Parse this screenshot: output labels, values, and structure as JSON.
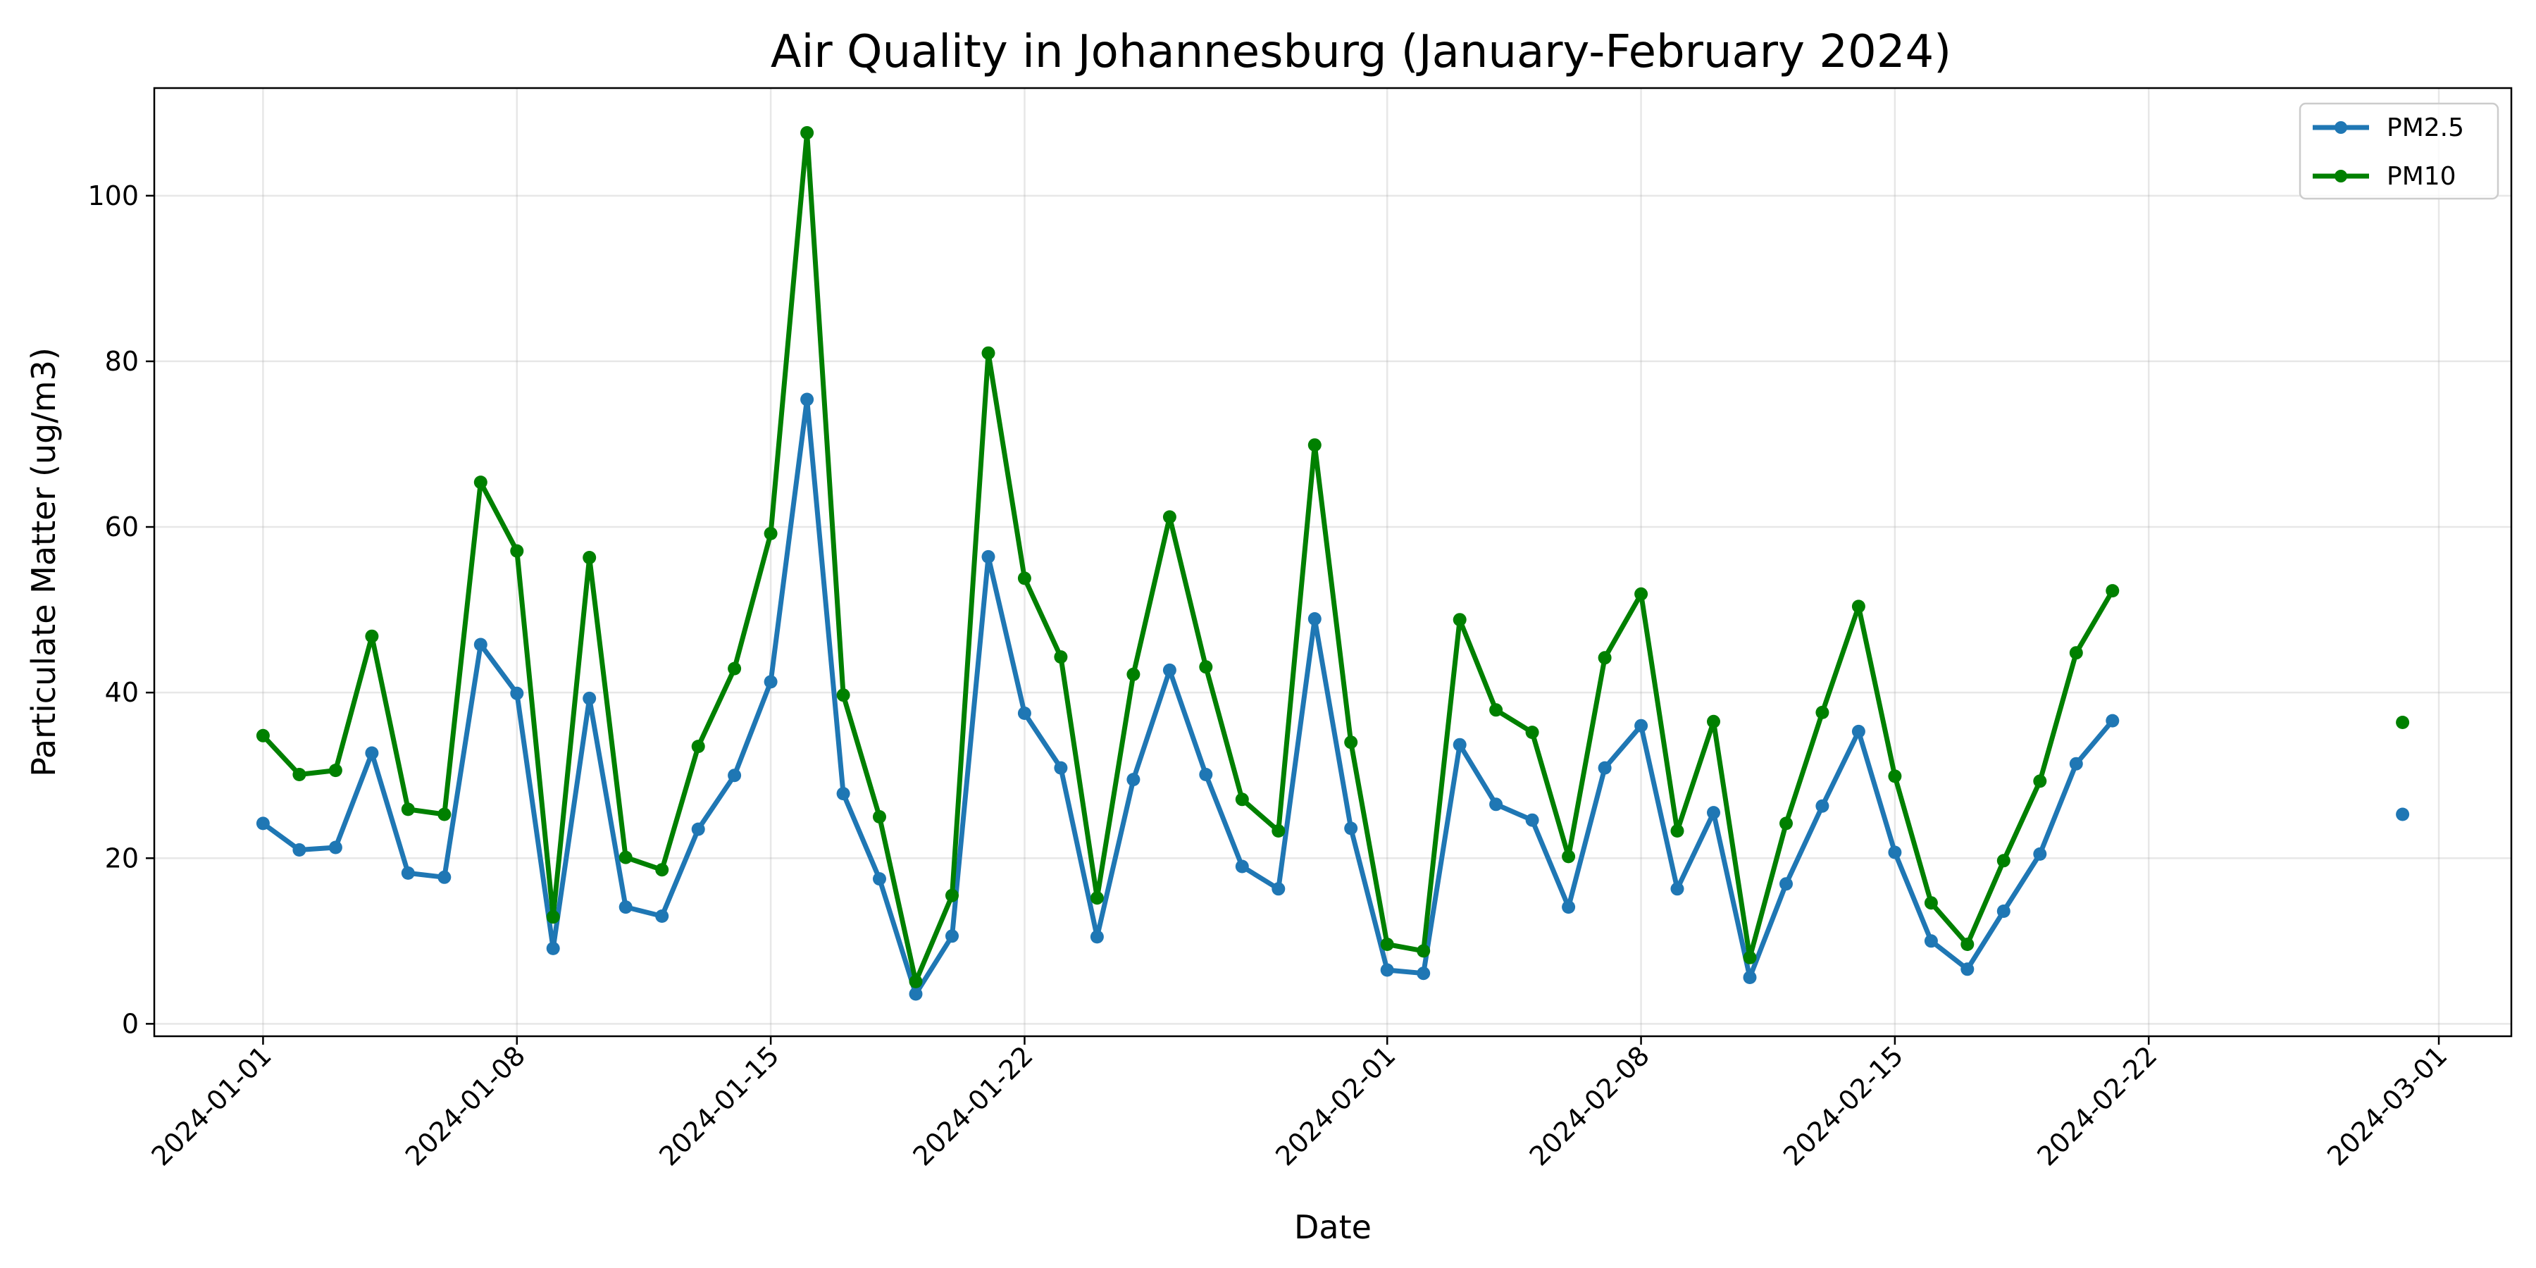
{
  "chart_data": {
    "type": "line",
    "title": "Air Quality in Johannesburg (January-February 2024)",
    "xlabel": "Date",
    "ylabel": "Particulate Matter (ug/m3)",
    "xlim": [
      "2023-12-29",
      "2024-03-03"
    ],
    "ylim": [
      -1.5,
      113
    ],
    "x_ticks": [
      "2024-01-01",
      "2024-01-08",
      "2024-01-15",
      "2024-01-22",
      "2024-02-01",
      "2024-02-08",
      "2024-02-15",
      "2024-02-22",
      "2024-03-01"
    ],
    "y_ticks": [
      0,
      20,
      40,
      60,
      80,
      100
    ],
    "grid": true,
    "legend_position": "top-right",
    "dates": [
      "2024-01-01",
      "2024-01-02",
      "2024-01-03",
      "2024-01-04",
      "2024-01-05",
      "2024-01-06",
      "2024-01-07",
      "2024-01-08",
      "2024-01-09",
      "2024-01-10",
      "2024-01-11",
      "2024-01-12",
      "2024-01-13",
      "2024-01-14",
      "2024-01-15",
      "2024-01-16",
      "2024-01-17",
      "2024-01-18",
      "2024-01-19",
      "2024-01-20",
      "2024-01-21",
      "2024-01-22",
      "2024-01-23",
      "2024-01-24",
      "2024-01-25",
      "2024-01-26",
      "2024-01-27",
      "2024-01-28",
      "2024-01-29",
      "2024-01-30",
      "2024-01-31",
      "2024-02-01",
      "2024-02-02",
      "2024-02-03",
      "2024-02-04",
      "2024-02-05",
      "2024-02-06",
      "2024-02-07",
      "2024-02-08",
      "2024-02-09",
      "2024-02-10",
      "2024-02-11",
      "2024-02-12",
      "2024-02-13",
      "2024-02-14",
      "2024-02-15",
      "2024-02-16",
      "2024-02-17",
      "2024-02-18",
      "2024-02-19",
      "2024-02-20",
      "2024-02-21",
      "2024-02-29"
    ],
    "series": [
      {
        "name": "PM2.5",
        "color": "#1f77b4",
        "values": [
          24.2,
          21.0,
          21.3,
          32.7,
          18.2,
          17.7,
          45.8,
          39.9,
          9.1,
          39.3,
          14.1,
          13.0,
          23.5,
          30.0,
          41.3,
          75.4,
          27.8,
          17.5,
          3.6,
          10.6,
          56.4,
          37.5,
          30.9,
          10.5,
          29.5,
          42.7,
          30.1,
          19.0,
          16.3,
          48.9,
          23.6,
          6.5,
          6.1,
          33.7,
          26.5,
          24.6,
          14.1,
          30.9,
          36.0,
          16.3,
          25.5,
          5.6,
          16.9,
          26.3,
          35.3,
          20.7,
          10.0,
          6.6,
          13.6,
          20.5,
          31.4,
          36.6,
          25.3
        ]
      },
      {
        "name": "PM10",
        "color": "#008000",
        "values": [
          34.8,
          30.1,
          30.6,
          46.8,
          25.9,
          25.3,
          65.4,
          57.1,
          12.9,
          56.3,
          20.1,
          18.6,
          33.5,
          42.9,
          59.2,
          107.6,
          39.7,
          25.0,
          5.1,
          15.5,
          81.0,
          53.8,
          44.3,
          15.2,
          42.2,
          61.2,
          43.1,
          27.1,
          23.3,
          69.9,
          34.0,
          9.6,
          8.8,
          48.8,
          37.9,
          35.2,
          20.2,
          44.2,
          51.9,
          23.3,
          36.5,
          8.0,
          24.2,
          37.6,
          50.4,
          29.9,
          14.6,
          9.6,
          19.7,
          29.3,
          44.8,
          52.3,
          36.4
        ]
      }
    ]
  }
}
